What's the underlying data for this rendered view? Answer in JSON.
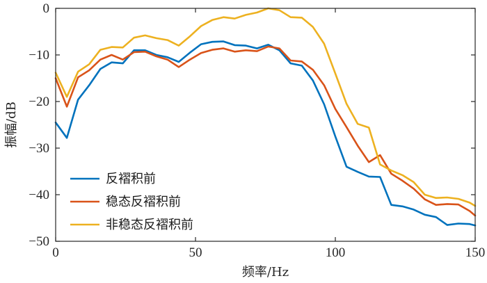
{
  "chart_data": {
    "type": "line",
    "xlabel": "频率/Hz",
    "ylabel": "振幅/dB",
    "xlim": [
      0,
      150
    ],
    "ylim": [
      -50,
      0
    ],
    "xticks": [
      0,
      50,
      100,
      150
    ],
    "yticks": [
      0,
      -10,
      -20,
      -30,
      -40,
      -50
    ],
    "xtick_labels": [
      "0",
      "50",
      "100",
      "150"
    ],
    "ytick_labels": [
      "0",
      "−10",
      "−20",
      "−30",
      "−40",
      "−50"
    ],
    "grid": false,
    "legend_position": "bottom-left",
    "series": [
      {
        "name": "反褶积前",
        "color": "#0072BD",
        "x": [
          0,
          4,
          8,
          12,
          16,
          20,
          24,
          28,
          32,
          36,
          40,
          44,
          48,
          52,
          56,
          60,
          64,
          68,
          72,
          76,
          80,
          84,
          88,
          92,
          96,
          100,
          104,
          108,
          112,
          116,
          120,
          124,
          128,
          132,
          136,
          140,
          144,
          148,
          150
        ],
        "y": [
          -24.5,
          -27.8,
          -19.6,
          -16.5,
          -13.0,
          -11.6,
          -11.8,
          -9.0,
          -9.0,
          -10.0,
          -10.5,
          -11.5,
          -9.5,
          -7.7,
          -7.2,
          -7.1,
          -7.9,
          -8.0,
          -8.6,
          -7.8,
          -9.0,
          -11.8,
          -12.3,
          -15.5,
          -20.6,
          -27.5,
          -34.0,
          -35.1,
          -36.1,
          -36.2,
          -42.2,
          -42.5,
          -43.2,
          -44.3,
          -44.8,
          -46.5,
          -46.2,
          -46.3,
          -46.6
        ]
      },
      {
        "name": "稳态反褶积前",
        "color": "#D95319",
        "x": [
          0,
          4,
          8,
          12,
          16,
          20,
          24,
          28,
          32,
          36,
          40,
          44,
          48,
          52,
          56,
          60,
          64,
          68,
          72,
          76,
          80,
          84,
          88,
          92,
          96,
          100,
          104,
          108,
          112,
          116,
          120,
          124,
          128,
          132,
          136,
          140,
          144,
          148,
          150
        ],
        "y": [
          -15.0,
          -21.1,
          -14.8,
          -13.3,
          -11.0,
          -10.0,
          -11.0,
          -9.4,
          -9.3,
          -10.3,
          -11.0,
          -12.6,
          -11.0,
          -9.6,
          -8.9,
          -8.6,
          -9.3,
          -9.0,
          -9.2,
          -8.2,
          -8.6,
          -11.2,
          -11.4,
          -13.2,
          -16.5,
          -21.6,
          -25.5,
          -29.5,
          -33.0,
          -31.5,
          -35.5,
          -37.0,
          -38.7,
          -41.0,
          -42.2,
          -42.0,
          -42.1,
          -43.5,
          -44.5
        ]
      },
      {
        "name": "非稳态反褶积前",
        "color": "#EDB120",
        "x": [
          0,
          4,
          8,
          12,
          16,
          20,
          24,
          28,
          32,
          36,
          40,
          44,
          48,
          52,
          56,
          60,
          64,
          68,
          72,
          76,
          80,
          84,
          88,
          92,
          96,
          100,
          104,
          108,
          112,
          116,
          120,
          124,
          128,
          132,
          136,
          140,
          144,
          148,
          150
        ],
        "y": [
          -13.8,
          -19.0,
          -13.6,
          -12.0,
          -8.9,
          -8.3,
          -8.4,
          -6.3,
          -5.8,
          -6.4,
          -6.8,
          -8.0,
          -6.0,
          -3.8,
          -2.5,
          -1.9,
          -2.2,
          -1.4,
          -0.9,
          0.0,
          -0.4,
          -1.9,
          -2.0,
          -4.0,
          -7.6,
          -14.0,
          -20.5,
          -24.8,
          -25.6,
          -33.5,
          -34.8,
          -35.8,
          -37.3,
          -40.0,
          -40.7,
          -40.6,
          -40.9,
          -41.7,
          -42.4
        ]
      }
    ]
  }
}
